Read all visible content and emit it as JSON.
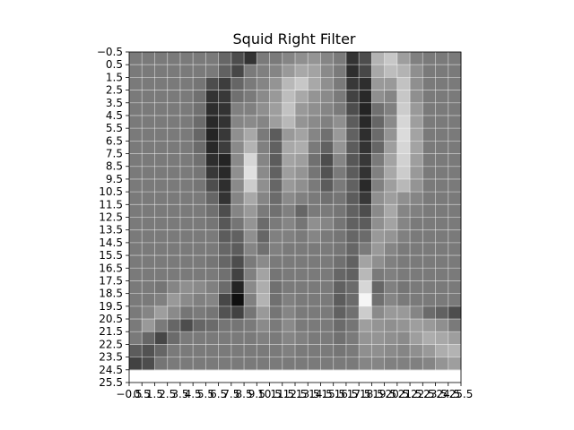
{
  "chart_data": {
    "type": "heatmap",
    "title": "Squid Right Filter",
    "xlabel": "",
    "ylabel": "",
    "colormap": "gray",
    "grid": true,
    "xlim": [
      -0.5,
      25.5
    ],
    "ylim": [
      25.5,
      -0.5
    ],
    "x_tick_labels": [
      "−0.5",
      "0.5",
      "1.5",
      "2.5",
      "3.5",
      "4.5",
      "5.5",
      "6.5",
      "7.5",
      "8.5",
      "9.5",
      "10.5",
      "11.5",
      "12.5",
      "13.5",
      "14.5",
      "15.5",
      "16.5",
      "17.5",
      "18.5",
      "19.5",
      "20.5",
      "21.5",
      "22.5",
      "23.5",
      "24.5",
      "25.5"
    ],
    "y_tick_labels": [
      "−0.5",
      "0.5",
      "1.5",
      "2.5",
      "3.5",
      "4.5",
      "5.5",
      "6.5",
      "7.5",
      "8.5",
      "9.5",
      "10.5",
      "11.5",
      "12.5",
      "13.5",
      "14.5",
      "15.5",
      "16.5",
      "17.5",
      "18.5",
      "19.5",
      "20.5",
      "21.5",
      "22.5",
      "23.5",
      "24.5",
      "25.5"
    ],
    "value_range": [
      0,
      100
    ],
    "values": [
      [
        48,
        48,
        48,
        48,
        48,
        48,
        48,
        40,
        30,
        20,
        48,
        48,
        52,
        56,
        58,
        52,
        48,
        20,
        30,
        70,
        78,
        62,
        50,
        48,
        48,
        48
      ],
      [
        48,
        48,
        48,
        48,
        48,
        48,
        48,
        38,
        28,
        48,
        50,
        52,
        60,
        66,
        64,
        54,
        48,
        18,
        28,
        66,
        74,
        70,
        56,
        48,
        48,
        48
      ],
      [
        48,
        48,
        48,
        48,
        48,
        46,
        30,
        24,
        40,
        48,
        52,
        58,
        72,
        78,
        66,
        56,
        48,
        22,
        18,
        60,
        60,
        76,
        56,
        48,
        48,
        48
      ],
      [
        48,
        48,
        48,
        48,
        48,
        44,
        20,
        22,
        44,
        48,
        54,
        60,
        74,
        66,
        58,
        54,
        48,
        26,
        16,
        56,
        52,
        78,
        56,
        48,
        48,
        48
      ],
      [
        48,
        48,
        48,
        48,
        48,
        44,
        18,
        20,
        50,
        50,
        56,
        62,
        76,
        60,
        56,
        52,
        48,
        30,
        14,
        44,
        50,
        80,
        60,
        48,
        48,
        48
      ],
      [
        48,
        48,
        48,
        48,
        48,
        42,
        16,
        20,
        52,
        54,
        52,
        62,
        72,
        58,
        54,
        50,
        56,
        36,
        16,
        40,
        54,
        84,
        62,
        48,
        48,
        48
      ],
      [
        48,
        48,
        48,
        48,
        48,
        40,
        14,
        22,
        56,
        66,
        48,
        36,
        60,
        64,
        52,
        44,
        60,
        38,
        18,
        42,
        58,
        86,
        64,
        48,
        48,
        48
      ],
      [
        48,
        48,
        48,
        48,
        48,
        42,
        16,
        24,
        54,
        70,
        50,
        38,
        66,
        68,
        48,
        38,
        58,
        36,
        20,
        40,
        62,
        84,
        64,
        48,
        48,
        48
      ],
      [
        48,
        48,
        48,
        48,
        48,
        44,
        18,
        14,
        54,
        84,
        52,
        36,
        64,
        62,
        44,
        30,
        52,
        34,
        22,
        48,
        64,
        82,
        62,
        48,
        48,
        48
      ],
      [
        48,
        48,
        48,
        48,
        48,
        46,
        22,
        16,
        56,
        88,
        54,
        38,
        62,
        58,
        46,
        32,
        48,
        36,
        20,
        50,
        66,
        80,
        60,
        48,
        48,
        48
      ],
      [
        48,
        48,
        48,
        48,
        48,
        46,
        30,
        18,
        54,
        80,
        56,
        40,
        60,
        56,
        48,
        36,
        48,
        38,
        16,
        50,
        62,
        72,
        58,
        48,
        48,
        48
      ],
      [
        48,
        48,
        48,
        48,
        48,
        48,
        40,
        20,
        52,
        66,
        52,
        42,
        54,
        50,
        48,
        44,
        46,
        36,
        22,
        56,
        62,
        56,
        52,
        48,
        48,
        48
      ],
      [
        48,
        48,
        48,
        48,
        48,
        48,
        44,
        30,
        52,
        60,
        48,
        44,
        50,
        40,
        48,
        48,
        46,
        38,
        30,
        54,
        66,
        52,
        50,
        48,
        48,
        48
      ],
      [
        48,
        48,
        48,
        48,
        48,
        48,
        46,
        34,
        46,
        58,
        42,
        48,
        52,
        46,
        56,
        52,
        46,
        38,
        36,
        56,
        64,
        52,
        48,
        48,
        48,
        48
      ],
      [
        48,
        48,
        48,
        48,
        48,
        48,
        48,
        36,
        38,
        56,
        40,
        50,
        50,
        48,
        52,
        48,
        46,
        40,
        42,
        60,
        58,
        50,
        48,
        48,
        48,
        48
      ],
      [
        48,
        48,
        48,
        48,
        48,
        48,
        48,
        40,
        36,
        52,
        44,
        50,
        48,
        48,
        48,
        48,
        46,
        40,
        48,
        60,
        52,
        48,
        48,
        48,
        48,
        48
      ],
      [
        48,
        48,
        48,
        48,
        48,
        48,
        46,
        40,
        30,
        48,
        54,
        48,
        48,
        48,
        48,
        48,
        44,
        38,
        64,
        56,
        50,
        48,
        48,
        48,
        48,
        48
      ],
      [
        48,
        48,
        48,
        48,
        48,
        48,
        48,
        44,
        26,
        50,
        64,
        46,
        48,
        48,
        48,
        48,
        40,
        38,
        72,
        48,
        50,
        48,
        48,
        48,
        48,
        48
      ],
      [
        48,
        48,
        46,
        52,
        56,
        54,
        50,
        42,
        14,
        54,
        68,
        44,
        48,
        48,
        48,
        48,
        38,
        42,
        84,
        40,
        50,
        46,
        48,
        48,
        48,
        48
      ],
      [
        48,
        48,
        50,
        60,
        54,
        50,
        52,
        28,
        6,
        50,
        70,
        44,
        50,
        48,
        48,
        48,
        36,
        42,
        96,
        44,
        52,
        48,
        48,
        48,
        48,
        48
      ],
      [
        48,
        52,
        62,
        54,
        46,
        48,
        46,
        32,
        26,
        46,
        60,
        46,
        52,
        48,
        48,
        48,
        38,
        44,
        80,
        54,
        60,
        60,
        52,
        42,
        38,
        30
      ],
      [
        48,
        60,
        48,
        40,
        30,
        40,
        42,
        46,
        46,
        48,
        54,
        48,
        54,
        48,
        48,
        48,
        42,
        46,
        62,
        58,
        56,
        58,
        62,
        60,
        56,
        48
      ],
      [
        48,
        40,
        28,
        42,
        48,
        48,
        48,
        48,
        48,
        48,
        50,
        48,
        52,
        50,
        48,
        48,
        44,
        48,
        58,
        58,
        56,
        54,
        62,
        68,
        66,
        62
      ],
      [
        36,
        32,
        40,
        48,
        48,
        48,
        48,
        48,
        48,
        48,
        48,
        48,
        50,
        48,
        48,
        48,
        46,
        48,
        56,
        56,
        54,
        52,
        56,
        60,
        68,
        70
      ],
      [
        26,
        30,
        46,
        48,
        48,
        48,
        48,
        48,
        48,
        48,
        48,
        48,
        48,
        48,
        48,
        48,
        48,
        48,
        52,
        52,
        50,
        50,
        50,
        52,
        58,
        62
      ]
    ]
  }
}
